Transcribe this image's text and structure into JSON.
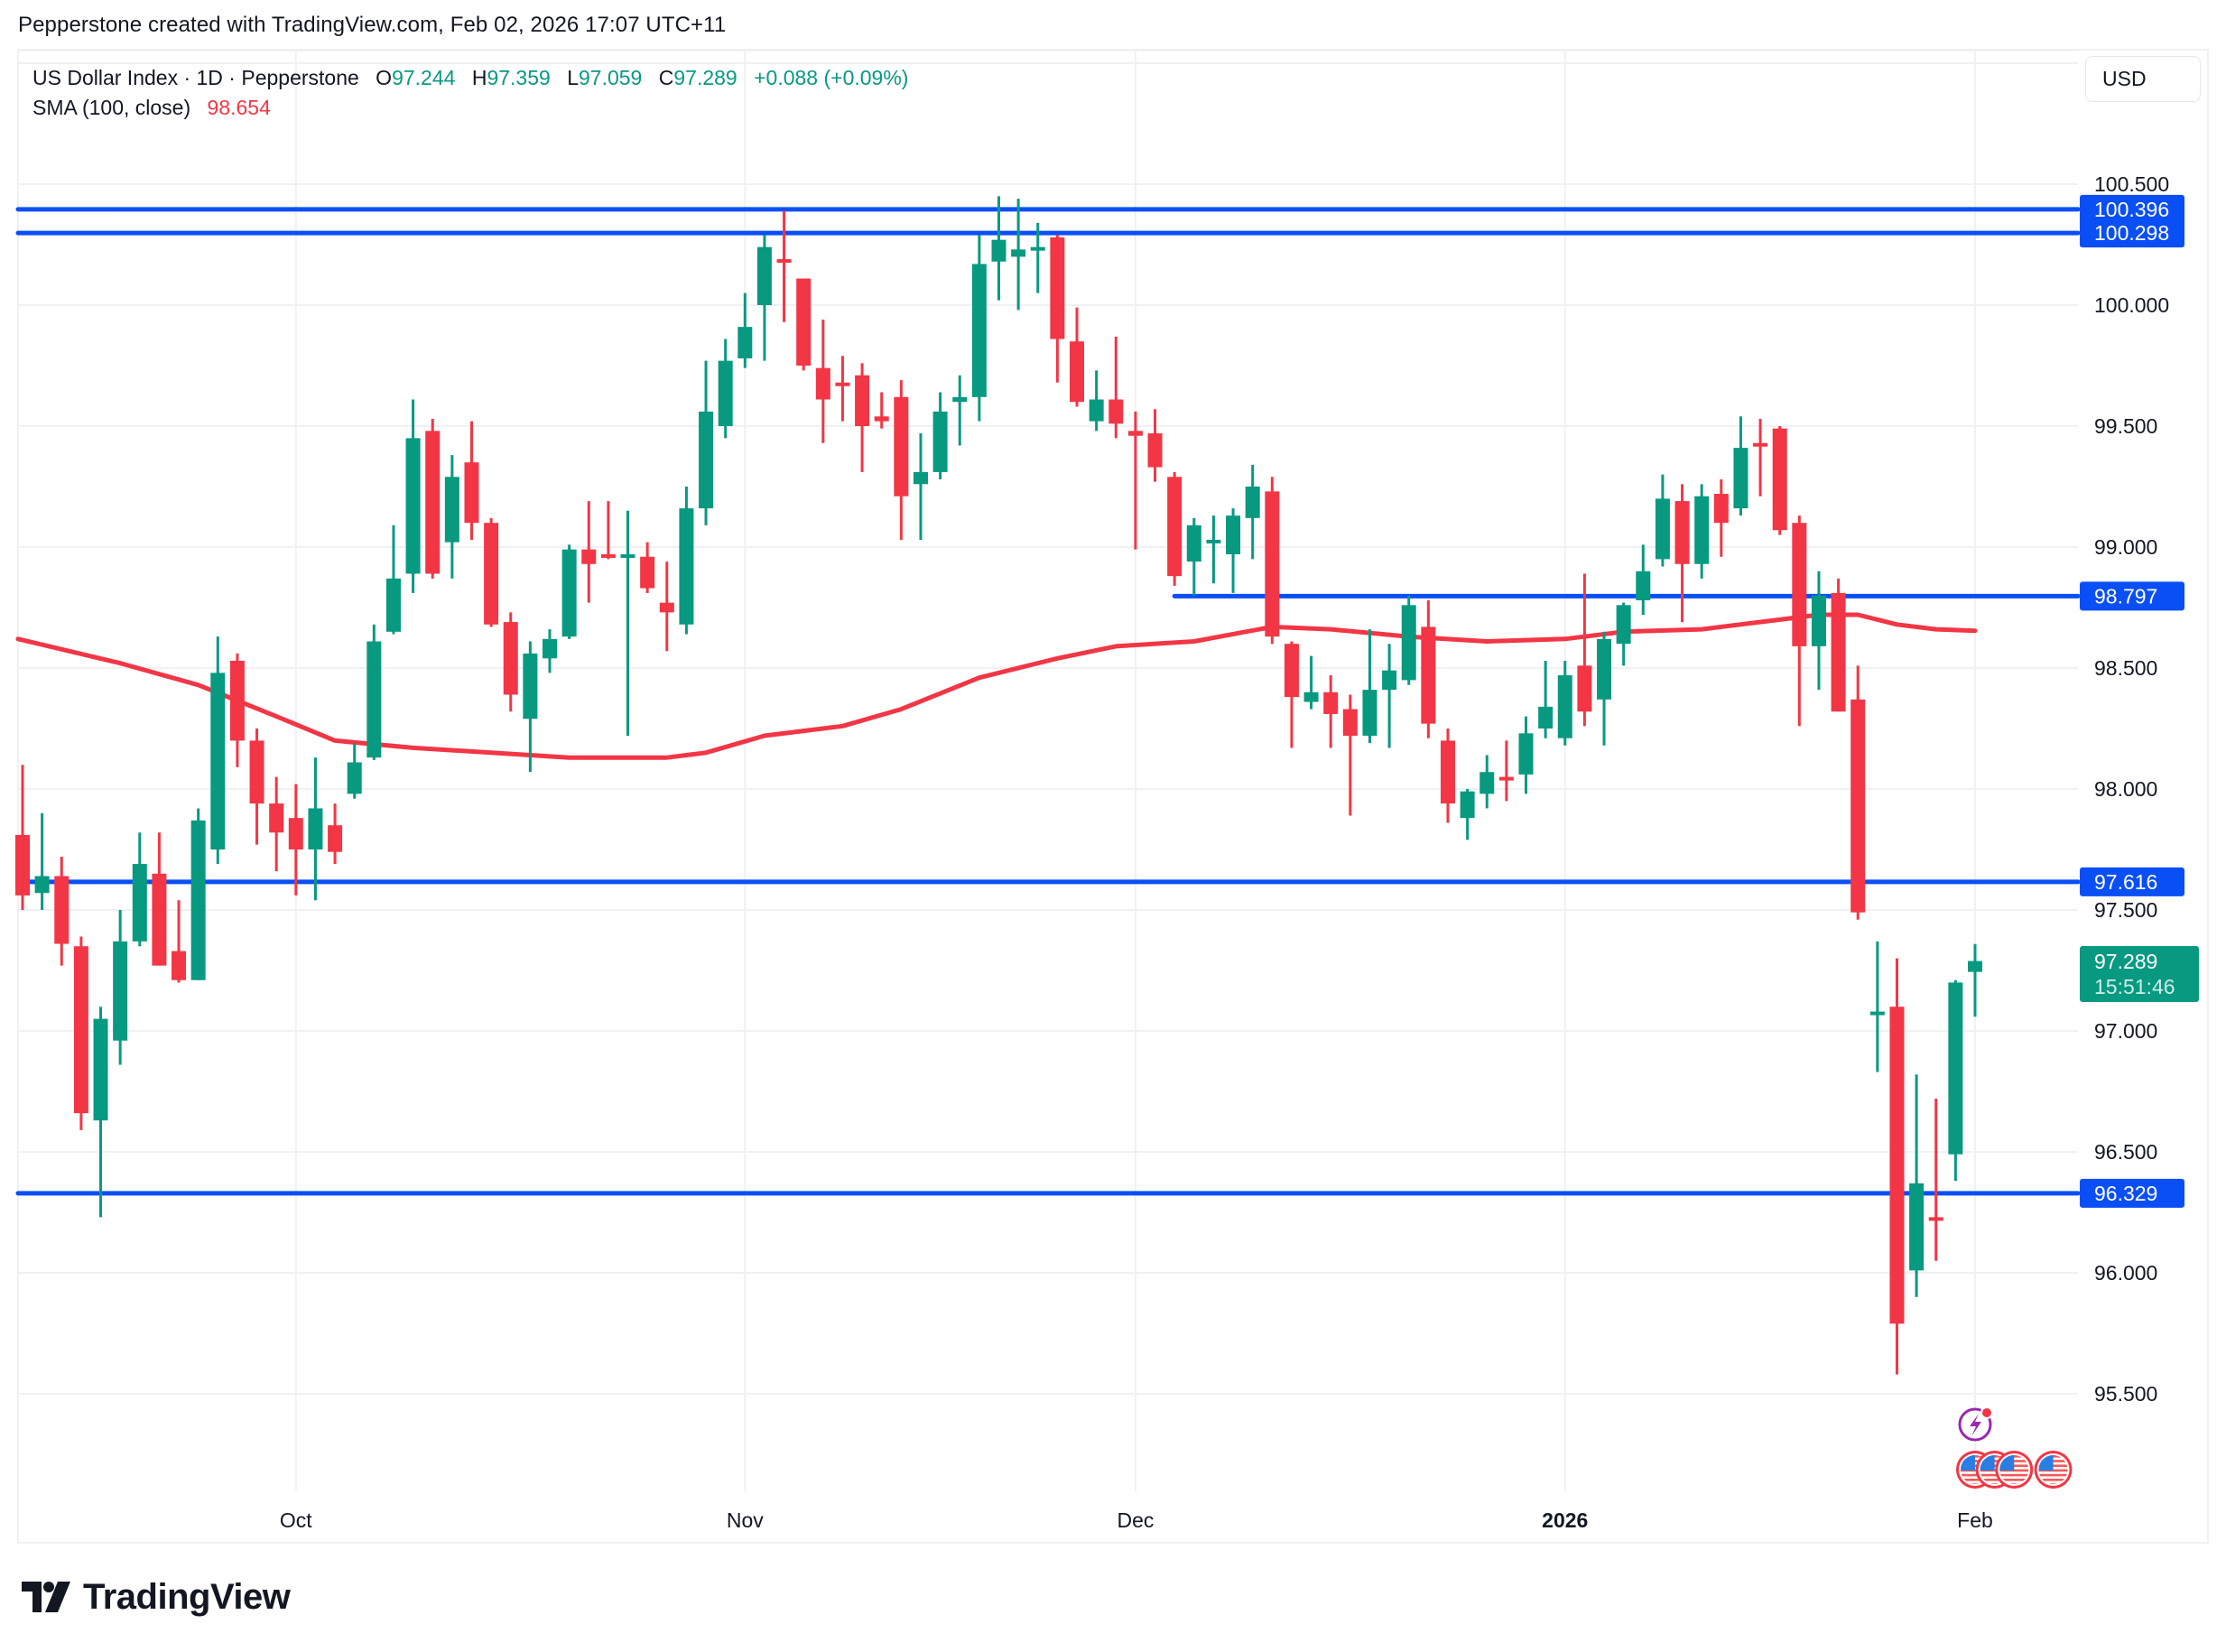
{
  "header": {
    "credit": "Pepperstone created with TradingView.com, Feb 02, 2026 17:07 UTC+11"
  },
  "legend": {
    "symbol": "US Dollar Index · 1D · Pepperstone",
    "open_label": "O",
    "open": "97.244",
    "high_label": "H",
    "high": "97.359",
    "low_label": "L",
    "low": "97.059",
    "close_label": "C",
    "close": "97.289",
    "change": "+0.088 (+0.09%)",
    "sma_label": "SMA (100, close)",
    "sma_value": "98.654"
  },
  "currency_button": "USD",
  "last_price_label": {
    "price": "97.289",
    "countdown": "15:51:46"
  },
  "footer": {
    "brand": "TradingView"
  },
  "colors": {
    "up": "#089981",
    "down": "#f23645",
    "sma": "#f23645",
    "level_line": "#0a4ff5",
    "grid": "#f0f1f3",
    "text": "#131722"
  },
  "chart_data": {
    "type": "candlestick",
    "title": "US Dollar Index · 1D · Pepperstone",
    "xlabel": "",
    "ylabel": "USD",
    "ylim": [
      95.2,
      101.0
    ],
    "y_ticks": [
      "100.500",
      "100.000",
      "99.500",
      "99.000",
      "98.500",
      "98.000",
      "97.500",
      "97.000",
      "96.500",
      "96.000",
      "95.500"
    ],
    "x_ticks": [
      {
        "label": "Oct",
        "bar": 15,
        "bold": false
      },
      {
        "label": "Nov",
        "bar": 38,
        "bold": false
      },
      {
        "label": "Dec",
        "bar": 58,
        "bold": false
      },
      {
        "label": "2026",
        "bar": 80,
        "bold": true
      },
      {
        "label": "Feb",
        "bar": 101,
        "bold": false
      }
    ],
    "grid": true,
    "candles": [
      [
        97.81,
        98.1,
        97.5,
        97.56
      ],
      [
        97.57,
        97.9,
        97.5,
        97.64
      ],
      [
        97.64,
        97.72,
        97.27,
        97.36
      ],
      [
        97.35,
        97.39,
        96.59,
        96.66
      ],
      [
        96.63,
        97.1,
        96.23,
        97.05
      ],
      [
        96.96,
        97.5,
        96.86,
        97.37
      ],
      [
        97.37,
        97.82,
        97.35,
        97.69
      ],
      [
        97.65,
        97.82,
        97.27,
        97.27
      ],
      [
        97.33,
        97.54,
        97.2,
        97.21
      ],
      [
        97.21,
        97.92,
        97.21,
        97.87
      ],
      [
        97.75,
        98.63,
        97.69,
        98.48
      ],
      [
        98.53,
        98.56,
        98.09,
        98.2
      ],
      [
        98.2,
        98.25,
        97.77,
        97.94
      ],
      [
        97.94,
        98.05,
        97.66,
        97.82
      ],
      [
        97.88,
        98.02,
        97.56,
        97.75
      ],
      [
        97.75,
        98.13,
        97.54,
        97.92
      ],
      [
        97.85,
        97.94,
        97.69,
        97.74
      ],
      [
        97.98,
        98.19,
        97.96,
        98.11
      ],
      [
        98.13,
        98.68,
        98.12,
        98.61
      ],
      [
        98.65,
        99.09,
        98.64,
        98.87
      ],
      [
        98.89,
        99.61,
        98.81,
        99.45
      ],
      [
        99.48,
        99.53,
        98.87,
        98.89
      ],
      [
        99.02,
        99.38,
        98.87,
        99.29
      ],
      [
        99.35,
        99.52,
        99.03,
        99.1
      ],
      [
        99.1,
        99.12,
        98.67,
        98.68
      ],
      [
        98.69,
        98.73,
        98.32,
        98.39
      ],
      [
        98.29,
        98.61,
        98.07,
        98.56
      ],
      [
        98.54,
        98.66,
        98.48,
        98.62
      ],
      [
        98.63,
        99.01,
        98.62,
        98.99
      ],
      [
        98.99,
        99.19,
        98.77,
        98.93
      ],
      [
        98.97,
        99.19,
        98.95,
        98.96
      ],
      [
        98.97,
        99.15,
        98.22,
        98.97
      ],
      [
        98.96,
        99.02,
        98.81,
        98.83
      ],
      [
        98.77,
        98.94,
        98.57,
        98.73
      ],
      [
        98.68,
        99.25,
        98.64,
        99.16
      ],
      [
        99.16,
        99.77,
        99.09,
        99.56
      ],
      [
        99.5,
        99.86,
        99.45,
        99.77
      ],
      [
        99.78,
        100.05,
        99.74,
        99.91
      ],
      [
        100.0,
        100.29,
        99.77,
        100.24
      ],
      [
        100.19,
        100.39,
        99.93,
        100.18
      ],
      [
        100.11,
        100.11,
        99.73,
        99.75
      ],
      [
        99.74,
        99.94,
        99.43,
        99.61
      ],
      [
        99.68,
        99.79,
        99.52,
        99.67
      ],
      [
        99.71,
        99.76,
        99.31,
        99.5
      ],
      [
        99.54,
        99.64,
        99.49,
        99.52
      ],
      [
        99.62,
        99.69,
        99.03,
        99.21
      ],
      [
        99.26,
        99.47,
        99.03,
        99.31
      ],
      [
        99.31,
        99.64,
        99.28,
        99.56
      ],
      [
        99.6,
        99.71,
        99.42,
        99.62
      ],
      [
        99.62,
        100.29,
        99.52,
        100.17
      ],
      [
        100.18,
        100.45,
        100.02,
        100.27
      ],
      [
        100.2,
        100.44,
        99.98,
        100.23
      ],
      [
        100.24,
        100.34,
        100.05,
        100.24
      ],
      [
        100.28,
        100.29,
        99.68,
        99.86
      ],
      [
        99.85,
        99.99,
        99.58,
        99.6
      ],
      [
        99.52,
        99.73,
        99.48,
        99.61
      ],
      [
        99.61,
        99.87,
        99.45,
        99.51
      ],
      [
        99.48,
        99.56,
        98.99,
        99.46
      ],
      [
        99.47,
        99.57,
        99.27,
        99.33
      ],
      [
        99.29,
        99.31,
        98.84,
        98.88
      ],
      [
        98.94,
        99.12,
        98.8,
        99.09
      ],
      [
        99.03,
        99.13,
        98.85,
        99.03
      ],
      [
        98.97,
        99.16,
        98.81,
        99.13
      ],
      [
        99.12,
        99.34,
        98.95,
        99.25
      ],
      [
        99.23,
        99.29,
        98.6,
        98.63
      ],
      [
        98.6,
        98.61,
        98.17,
        98.38
      ],
      [
        98.36,
        98.55,
        98.33,
        98.4
      ],
      [
        98.4,
        98.47,
        98.17,
        98.31
      ],
      [
        98.33,
        98.39,
        97.89,
        98.22
      ],
      [
        98.22,
        98.66,
        98.19,
        98.41
      ],
      [
        98.41,
        98.6,
        98.17,
        98.49
      ],
      [
        98.45,
        98.8,
        98.43,
        98.76
      ],
      [
        98.67,
        98.78,
        98.21,
        98.27
      ],
      [
        98.2,
        98.25,
        97.86,
        97.94
      ],
      [
        97.88,
        98.0,
        97.79,
        97.99
      ],
      [
        97.98,
        98.14,
        97.92,
        98.07
      ],
      [
        98.05,
        98.2,
        97.95,
        98.04
      ],
      [
        98.06,
        98.3,
        97.98,
        98.23
      ],
      [
        98.25,
        98.53,
        98.21,
        98.34
      ],
      [
        98.21,
        98.53,
        98.18,
        98.47
      ],
      [
        98.51,
        98.89,
        98.26,
        98.32
      ],
      [
        98.37,
        98.65,
        98.18,
        98.62
      ],
      [
        98.6,
        98.77,
        98.51,
        98.76
      ],
      [
        98.78,
        99.01,
        98.72,
        98.9
      ],
      [
        98.95,
        99.3,
        98.92,
        99.2
      ],
      [
        99.19,
        99.26,
        98.69,
        98.93
      ],
      [
        98.93,
        99.26,
        98.87,
        99.21
      ],
      [
        99.22,
        99.28,
        98.96,
        99.1
      ],
      [
        99.16,
        99.54,
        99.13,
        99.41
      ],
      [
        99.43,
        99.53,
        99.21,
        99.42
      ],
      [
        99.49,
        99.5,
        99.05,
        99.07
      ],
      [
        99.1,
        99.13,
        98.26,
        98.59
      ],
      [
        98.59,
        98.9,
        98.41,
        98.8
      ],
      [
        98.81,
        98.87,
        98.32,
        98.32
      ],
      [
        98.37,
        98.51,
        97.46,
        97.49
      ],
      [
        97.07,
        97.37,
        96.83,
        97.08
      ],
      [
        97.1,
        97.3,
        95.58,
        95.79
      ],
      [
        96.01,
        96.82,
        95.9,
        96.37
      ],
      [
        96.23,
        96.72,
        96.05,
        96.22
      ],
      [
        96.49,
        97.21,
        96.38,
        97.2
      ],
      [
        97.244,
        97.359,
        97.059,
        97.289
      ]
    ],
    "candle_format": [
      "open",
      "high",
      "low",
      "close"
    ],
    "sma": {
      "name": "SMA (100, close)",
      "last": 98.654,
      "points": [
        [
          0,
          98.62
        ],
        [
          6,
          98.52
        ],
        [
          10,
          98.43
        ],
        [
          14,
          98.3
        ],
        [
          17,
          98.2
        ],
        [
          21,
          98.17
        ],
        [
          25,
          98.15
        ],
        [
          29,
          98.13
        ],
        [
          34,
          98.13
        ],
        [
          36,
          98.15
        ],
        [
          39,
          98.22
        ],
        [
          43,
          98.26
        ],
        [
          46,
          98.33
        ],
        [
          50,
          98.46
        ],
        [
          54,
          98.54
        ],
        [
          57,
          98.59
        ],
        [
          61,
          98.61
        ],
        [
          65,
          98.67
        ],
        [
          68,
          98.66
        ],
        [
          72,
          98.63
        ],
        [
          76,
          98.61
        ],
        [
          80,
          98.62
        ],
        [
          83,
          98.65
        ],
        [
          87,
          98.66
        ],
        [
          91,
          98.7
        ],
        [
          93,
          98.72
        ],
        [
          95,
          98.72
        ],
        [
          97,
          98.68
        ],
        [
          99,
          98.66
        ],
        [
          101,
          98.654
        ]
      ]
    },
    "horizontal_levels": [
      {
        "price": 100.396,
        "label": "100.396",
        "from_bar": 0
      },
      {
        "price": 100.298,
        "label": "100.298",
        "from_bar": 0
      },
      {
        "price": 98.797,
        "label": "98.797",
        "from_bar": 60
      },
      {
        "price": 97.616,
        "label": "97.616",
        "from_bar": 0
      },
      {
        "price": 96.329,
        "label": "96.329",
        "from_bar": 0
      }
    ],
    "events": [
      {
        "type": "lightning",
        "bar": 101
      },
      {
        "type": "us-flag",
        "bar": 101
      },
      {
        "type": "us-flag",
        "bar": 102
      },
      {
        "type": "us-flag",
        "bar": 103
      },
      {
        "type": "us-flag",
        "bar": 105
      }
    ]
  }
}
